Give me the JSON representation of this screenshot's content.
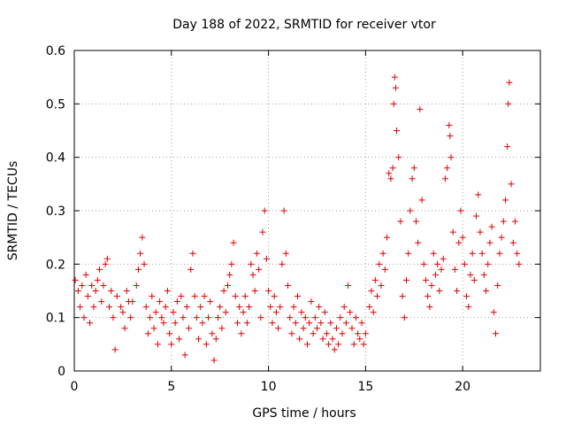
{
  "chart_data": {
    "type": "scatter",
    "title": "Day 188 of 2022, SRMTID for receiver vtor",
    "xlabel": "GPS time / hours",
    "ylabel": "SRMTID / TECUs",
    "xlim": [
      0,
      24
    ],
    "ylim": [
      0,
      0.6
    ],
    "xticks": [
      "0",
      "5",
      "10",
      "15",
      "20"
    ],
    "yticks": [
      "0",
      "0.1",
      "0.2",
      "0.3",
      "0.4",
      "0.5",
      "0.6"
    ],
    "grid": true,
    "marker": "+",
    "color": "#e00000",
    "series": [
      {
        "name": "SRMTID",
        "points": [
          [
            0.05,
            0.17
          ],
          [
            0.2,
            0.15
          ],
          [
            0.3,
            0.12
          ],
          [
            0.4,
            0.16
          ],
          [
            0.5,
            0.1
          ],
          [
            0.6,
            0.18
          ],
          [
            0.7,
            0.14
          ],
          [
            0.8,
            0.09
          ],
          [
            0.9,
            0.16
          ],
          [
            1.0,
            0.12
          ],
          [
            1.1,
            0.15
          ],
          [
            1.2,
            0.17
          ],
          [
            1.3,
            0.19
          ],
          [
            1.4,
            0.13
          ],
          [
            1.5,
            0.16
          ],
          [
            1.6,
            0.2
          ],
          [
            1.7,
            0.21
          ],
          [
            1.8,
            0.12
          ],
          [
            1.9,
            0.15
          ],
          [
            2.0,
            0.1
          ],
          [
            2.1,
            0.04
          ],
          [
            2.2,
            0.14
          ],
          [
            2.4,
            0.12
          ],
          [
            2.5,
            0.11
          ],
          [
            2.6,
            0.08
          ],
          [
            2.7,
            0.15
          ],
          [
            2.8,
            0.13
          ],
          [
            2.9,
            0.1
          ],
          [
            3.0,
            0.13
          ],
          [
            3.2,
            0.16
          ],
          [
            3.3,
            0.19
          ],
          [
            3.4,
            0.22
          ],
          [
            3.5,
            0.25
          ],
          [
            3.6,
            0.2
          ],
          [
            3.7,
            0.12
          ],
          [
            3.8,
            0.07
          ],
          [
            3.9,
            0.1
          ],
          [
            4.0,
            0.14
          ],
          [
            4.1,
            0.08
          ],
          [
            4.2,
            0.11
          ],
          [
            4.3,
            0.05
          ],
          [
            4.4,
            0.13
          ],
          [
            4.5,
            0.1
          ],
          [
            4.6,
            0.09
          ],
          [
            4.7,
            0.12
          ],
          [
            4.8,
            0.15
          ],
          [
            4.9,
            0.07
          ],
          [
            5.0,
            0.05
          ],
          [
            5.1,
            0.11
          ],
          [
            5.2,
            0.09
          ],
          [
            5.3,
            0.13
          ],
          [
            5.4,
            0.06
          ],
          [
            5.5,
            0.14
          ],
          [
            5.6,
            0.1
          ],
          [
            5.7,
            0.03
          ],
          [
            5.8,
            0.12
          ],
          [
            5.9,
            0.08
          ],
          [
            6.0,
            0.19
          ],
          [
            6.1,
            0.22
          ],
          [
            6.2,
            0.14
          ],
          [
            6.3,
            0.1
          ],
          [
            6.4,
            0.06
          ],
          [
            6.5,
            0.12
          ],
          [
            6.6,
            0.09
          ],
          [
            6.7,
            0.14
          ],
          [
            6.8,
            0.05
          ],
          [
            6.9,
            0.1
          ],
          [
            7.0,
            0.13
          ],
          [
            7.1,
            0.07
          ],
          [
            7.2,
            0.02
          ],
          [
            7.3,
            0.06
          ],
          [
            7.4,
            0.1
          ],
          [
            7.5,
            0.12
          ],
          [
            7.6,
            0.08
          ],
          [
            7.7,
            0.15
          ],
          [
            7.8,
            0.11
          ],
          [
            7.9,
            0.16
          ],
          [
            8.0,
            0.18
          ],
          [
            8.1,
            0.2
          ],
          [
            8.2,
            0.24
          ],
          [
            8.3,
            0.14
          ],
          [
            8.4,
            0.09
          ],
          [
            8.5,
            0.12
          ],
          [
            8.6,
            0.07
          ],
          [
            8.7,
            0.11
          ],
          [
            8.8,
            0.14
          ],
          [
            8.9,
            0.09
          ],
          [
            9.0,
            0.12
          ],
          [
            9.1,
            0.2
          ],
          [
            9.2,
            0.18
          ],
          [
            9.3,
            0.15
          ],
          [
            9.4,
            0.22
          ],
          [
            9.5,
            0.19
          ],
          [
            9.6,
            0.1
          ],
          [
            9.7,
            0.26
          ],
          [
            9.8,
            0.3
          ],
          [
            9.9,
            0.21
          ],
          [
            10.0,
            0.15
          ],
          [
            10.1,
            0.12
          ],
          [
            10.2,
            0.09
          ],
          [
            10.3,
            0.14
          ],
          [
            10.4,
            0.11
          ],
          [
            10.5,
            0.08
          ],
          [
            10.6,
            0.12
          ],
          [
            10.7,
            0.2
          ],
          [
            10.8,
            0.3
          ],
          [
            10.9,
            0.22
          ],
          [
            11.0,
            0.16
          ],
          [
            11.1,
            0.1
          ],
          [
            11.2,
            0.07
          ],
          [
            11.3,
            0.12
          ],
          [
            11.4,
            0.09
          ],
          [
            11.5,
            0.14
          ],
          [
            11.6,
            0.06
          ],
          [
            11.7,
            0.11
          ],
          [
            11.8,
            0.08
          ],
          [
            11.9,
            0.1
          ],
          [
            12.0,
            0.05
          ],
          [
            12.1,
            0.09
          ],
          [
            12.2,
            0.13
          ],
          [
            12.3,
            0.07
          ],
          [
            12.4,
            0.1
          ],
          [
            12.5,
            0.08
          ],
          [
            12.6,
            0.12
          ],
          [
            12.7,
            0.09
          ],
          [
            12.8,
            0.06
          ],
          [
            12.9,
            0.11
          ],
          [
            13.0,
            0.07
          ],
          [
            13.1,
            0.05
          ],
          [
            13.2,
            0.09
          ],
          [
            13.3,
            0.06
          ],
          [
            13.4,
            0.04
          ],
          [
            13.5,
            0.08
          ],
          [
            13.6,
            0.05
          ],
          [
            13.7,
            0.1
          ],
          [
            13.8,
            0.07
          ],
          [
            13.9,
            0.12
          ],
          [
            14.0,
            0.09
          ],
          [
            14.1,
            0.16
          ],
          [
            14.2,
            0.11
          ],
          [
            14.3,
            0.08
          ],
          [
            14.4,
            0.05
          ],
          [
            14.5,
            0.1
          ],
          [
            14.6,
            0.07
          ],
          [
            14.7,
            0.06
          ],
          [
            14.8,
            0.09
          ],
          [
            14.9,
            0.05
          ],
          [
            15.0,
            0.07
          ],
          [
            15.2,
            0.12
          ],
          [
            15.3,
            0.15
          ],
          [
            15.4,
            0.11
          ],
          [
            15.5,
            0.17
          ],
          [
            15.6,
            0.14
          ],
          [
            15.7,
            0.2
          ],
          [
            15.8,
            0.16
          ],
          [
            15.9,
            0.22
          ],
          [
            16.0,
            0.19
          ],
          [
            16.1,
            0.25
          ],
          [
            16.2,
            0.37
          ],
          [
            16.3,
            0.36
          ],
          [
            16.4,
            0.38
          ],
          [
            16.5,
            0.55
          ],
          [
            16.6,
            0.45
          ],
          [
            16.7,
            0.4
          ],
          [
            16.8,
            0.28
          ],
          [
            16.9,
            0.14
          ],
          [
            17.0,
            0.1
          ],
          [
            17.1,
            0.17
          ],
          [
            17.2,
            0.22
          ],
          [
            17.3,
            0.3
          ],
          [
            17.4,
            0.36
          ],
          [
            17.5,
            0.38
          ],
          [
            17.6,
            0.28
          ],
          [
            17.7,
            0.24
          ],
          [
            17.8,
            0.49
          ],
          [
            17.9,
            0.32
          ],
          [
            18.0,
            0.2
          ],
          [
            18.1,
            0.17
          ],
          [
            18.2,
            0.14
          ],
          [
            18.3,
            0.12
          ],
          [
            18.4,
            0.16
          ],
          [
            18.5,
            0.22
          ],
          [
            18.6,
            0.18
          ],
          [
            18.7,
            0.2
          ],
          [
            18.8,
            0.15
          ],
          [
            18.9,
            0.19
          ],
          [
            19.0,
            0.21
          ],
          [
            19.1,
            0.36
          ],
          [
            19.2,
            0.38
          ],
          [
            19.3,
            0.46
          ],
          [
            19.4,
            0.4
          ],
          [
            19.5,
            0.26
          ],
          [
            19.6,
            0.19
          ],
          [
            19.7,
            0.15
          ],
          [
            19.8,
            0.24
          ],
          [
            19.9,
            0.3
          ],
          [
            20.0,
            0.25
          ],
          [
            20.1,
            0.2
          ],
          [
            20.2,
            0.14
          ],
          [
            20.3,
            0.12
          ],
          [
            20.4,
            0.18
          ],
          [
            20.5,
            0.22
          ],
          [
            20.6,
            0.17
          ],
          [
            20.7,
            0.29
          ],
          [
            20.8,
            0.33
          ],
          [
            20.9,
            0.26
          ],
          [
            21.0,
            0.22
          ],
          [
            21.1,
            0.18
          ],
          [
            21.2,
            0.15
          ],
          [
            21.3,
            0.2
          ],
          [
            21.4,
            0.24
          ],
          [
            21.5,
            0.27
          ],
          [
            21.6,
            0.11
          ],
          [
            21.7,
            0.07
          ],
          [
            21.8,
            0.16
          ],
          [
            21.9,
            0.22
          ],
          [
            22.0,
            0.25
          ],
          [
            22.1,
            0.28
          ],
          [
            22.2,
            0.32
          ],
          [
            22.3,
            0.42
          ],
          [
            22.4,
            0.54
          ],
          [
            22.5,
            0.35
          ],
          [
            22.6,
            0.24
          ],
          [
            22.7,
            0.28
          ],
          [
            22.8,
            0.22
          ],
          [
            22.9,
            0.2
          ],
          [
            16.45,
            0.5
          ],
          [
            16.55,
            0.53
          ],
          [
            19.35,
            0.44
          ],
          [
            22.35,
            0.5
          ]
        ]
      }
    ]
  }
}
